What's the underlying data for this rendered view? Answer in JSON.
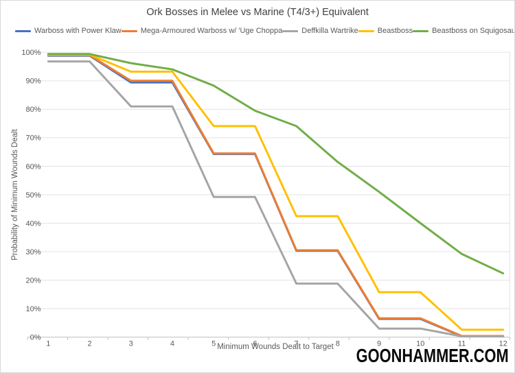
{
  "title": "Ork Bosses in Melee vs Marine (T4/3+) Equivalent",
  "watermark": "GOONHAMMER.COM",
  "colors": {
    "grid_line": "#e3e3e3",
    "axis_line": "#bfbfbf",
    "tick_text": "#595959",
    "title_text": "#3f3f3f",
    "watermark_text": "#0a0a0a"
  },
  "chart_data": {
    "type": "line",
    "title": "Ork Bosses in Melee vs Marine (T4/3+) Equivalent",
    "xlabel": "Minimum Wounds Dealt to Target",
    "ylabel": "Probability of Minimum Wounds Dealt",
    "x": [
      1,
      2,
      3,
      4,
      5,
      6,
      7,
      8,
      9,
      10,
      11,
      12
    ],
    "y_ticks_percent": [
      0,
      10,
      20,
      30,
      40,
      50,
      60,
      70,
      80,
      90,
      100
    ],
    "ylim": [
      0,
      100
    ],
    "grid": true,
    "legend_position": "top",
    "series": [
      {
        "name": "Warboss with Power Klaw",
        "color": "#4472C4",
        "values": [
          98.8,
          98.8,
          89.4,
          89.4,
          64.3,
          64.3,
          30.3,
          30.3,
          6.4,
          6.4,
          0.3,
          0.3
        ]
      },
      {
        "name": "Mega-Armoured Warboss w/ 'Uge Choppa",
        "color": "#ED7D31",
        "values": [
          99.0,
          99.0,
          90.0,
          90.0,
          64.5,
          64.5,
          30.5,
          30.5,
          6.6,
          6.6,
          0.4,
          0.4
        ]
      },
      {
        "name": "Deffkilla Wartrike",
        "color": "#A5A5A5",
        "values": [
          96.8,
          96.8,
          81.0,
          81.0,
          49.2,
          49.2,
          18.8,
          18.8,
          3.0,
          3.0,
          0.3,
          0.3
        ]
      },
      {
        "name": "Beastboss",
        "color": "#FFC000",
        "values": [
          99.2,
          99.2,
          93.2,
          93.2,
          74.1,
          74.1,
          42.5,
          42.5,
          15.8,
          15.8,
          2.6,
          2.6
        ]
      },
      {
        "name": "Beastboss on Squigosaur",
        "color": "#70AD47",
        "values": [
          99.4,
          99.4,
          96.2,
          94.0,
          88.3,
          79.5,
          74.1,
          61.5,
          51.0,
          40.0,
          29.2,
          22.4
        ]
      }
    ]
  }
}
